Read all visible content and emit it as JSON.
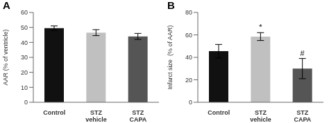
{
  "chart_data": [
    {
      "type": "bar",
      "title": "A",
      "ylabel": "AAR (% of ventricle)",
      "categories": [
        "Control",
        "STZ\nvehicle",
        "STZ\nCAPA"
      ],
      "values": [
        49.5,
        46.5,
        44.0
      ],
      "errors": [
        1.5,
        2.0,
        2.0
      ],
      "colors": [
        "#111111",
        "#c0c0c0",
        "#555555"
      ],
      "ylim": [
        0,
        60
      ],
      "yticks": [
        0,
        10,
        20,
        30,
        40,
        50,
        60
      ],
      "grid": false
    },
    {
      "type": "bar",
      "title": "B",
      "ylabel": "Infarct size  (% of AAR)",
      "categories": [
        "Control",
        "STZ\nvehicle",
        "STZ\nCAPA"
      ],
      "values": [
        45.5,
        58.5,
        30.0
      ],
      "errors": [
        6.0,
        3.5,
        9.0
      ],
      "colors": [
        "#111111",
        "#c0c0c0",
        "#555555"
      ],
      "ylim": [
        0,
        80
      ],
      "yticks": [
        0,
        20,
        40,
        60,
        80
      ],
      "annotations": [
        null,
        "*",
        "#"
      ],
      "grid": false
    }
  ]
}
